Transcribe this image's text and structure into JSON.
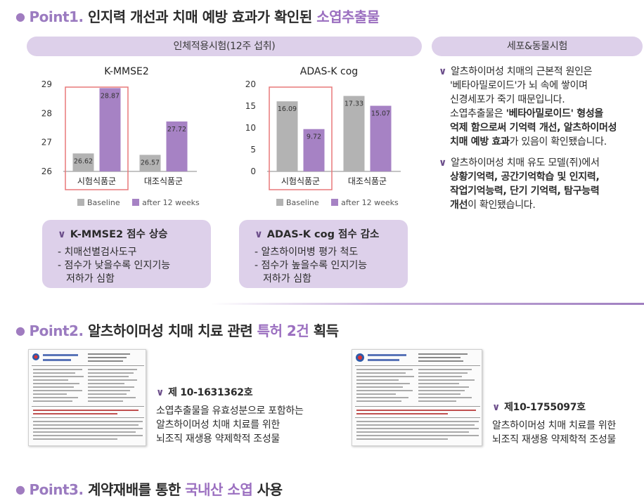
{
  "point1": {
    "bullet": "●",
    "label": "Point1.",
    "text": " 인지력 개선과 치매 예방 효과가 확인된 ",
    "highlight": "소엽추출물"
  },
  "clinical_header": "인체적용시험(12주 섭취)",
  "cell_header": "세포&동물시험",
  "colors": {
    "baseline": "#b3b3b3",
    "after": "#a682c4",
    "accent": "#9b6fc0",
    "highlight_box": "#e8787a",
    "pill": "#ddd0ea"
  },
  "chart_data": [
    {
      "type": "bar",
      "title": "K-MMSE2",
      "categories": [
        "시험식품군",
        "대조식품군"
      ],
      "series": [
        {
          "name": "Baseline",
          "values": [
            26.62,
            26.57
          ]
        },
        {
          "name": "after 12 weeks",
          "values": [
            28.87,
            27.72
          ]
        }
      ],
      "yticks": [
        "29",
        "28",
        "27",
        "26"
      ],
      "ylim": [
        26,
        29
      ],
      "legend_position": "bottom",
      "highlighted_category": "시험식품군"
    },
    {
      "type": "bar",
      "title": "ADAS-K cog",
      "categories": [
        "시험식품군",
        "대조식품군"
      ],
      "series": [
        {
          "name": "Baseline",
          "values": [
            16.09,
            17.33
          ]
        },
        {
          "name": "after 12 weeks",
          "values": [
            9.72,
            15.07
          ]
        }
      ],
      "yticks": [
        "20",
        "15",
        "10",
        "5",
        "0"
      ],
      "ylim": [
        0,
        20
      ],
      "legend_position": "bottom",
      "highlighted_category": "시험식품군"
    }
  ],
  "legend": {
    "baseline": "Baseline",
    "after": "after 12 weeks"
  },
  "box1": {
    "check": "∨",
    "head": "K-MMSE2 점수 상승",
    "line1": "- 치매선별검사도구",
    "line2": "- 점수가 낮을수록 인지기능",
    "line3": "저하가 심함"
  },
  "box2": {
    "check": "∨",
    "head": "ADAS-K cog 점수 감소",
    "line1": "- 알츠하이머병 평가 척도",
    "line2": "- 점수가 높을수록 인지기능",
    "line3": "저하가 심함"
  },
  "right_items": [
    {
      "check": "∨",
      "l1": "알츠하이머성 치매의 근본적 원인은",
      "l2": "'베타아밀로이드'가 뇌 속에 쌓이며",
      "l3": "신경세포가 죽기 때문입니다.",
      "l4a": "소엽추출물은 ",
      "l4b": "'베타아밀로이드' 형성을",
      "l5": "억제 함으로써 기억력 개선, 알츠하이머성",
      "l6a": "치매 예방 효과",
      "l6b": "가 있음이 확인됐습니다."
    },
    {
      "check": "∨",
      "l1": "알츠하이머성 치매 유도 모델(쥐)에서",
      "l2": "상황기억력, 공간기억학습 및 인지력,",
      "l3": "작업기억능력, 단기 기억력, 탐구능력",
      "l4a": "개선",
      "l4b": "이 확인됐습니다."
    }
  ],
  "point2": {
    "bullet": "●",
    "label": "Point2.",
    "text": " 알츠하이머성 치매 치료 관련 ",
    "highlight": "특허 2건",
    "suffix": " 획득"
  },
  "patent1": {
    "check": "∨",
    "number": "제 10-1631362호",
    "l1": "소엽추출물을 유효성분으로 포함하는",
    "l2": "알츠하이머성 치매 치료를 위한",
    "l3": "뇌조직 재생용 약제학적 조성물"
  },
  "patent2": {
    "check": "∨",
    "number": "제10-1755097호",
    "l1": "알츠하이머성 치매 치료를 위한",
    "l2": "뇌조직 재생용 약제학적 조성물"
  },
  "point3": {
    "bullet": "●",
    "label": "Point3.",
    "text": " 계약재배를 통한 ",
    "highlight": "국내산 소엽",
    "suffix": " 사용"
  }
}
